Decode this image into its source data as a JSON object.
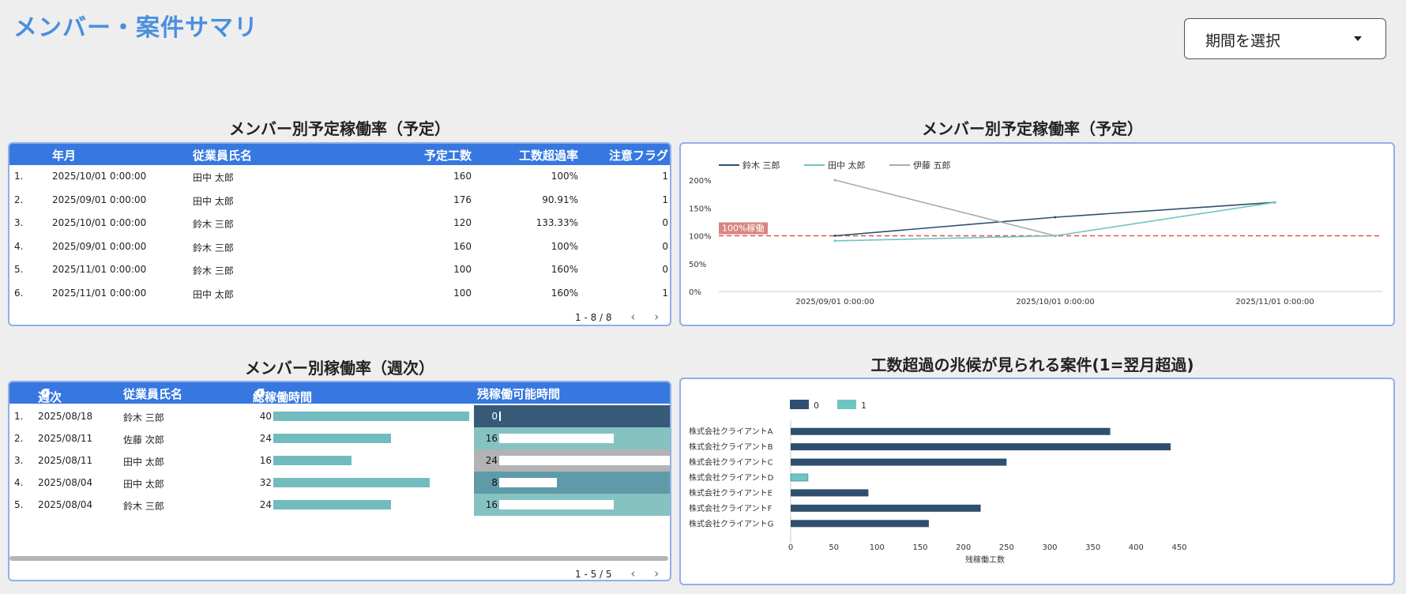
{
  "page_title": "メンバー・案件サマリ",
  "period_select": {
    "label": "期間を選択"
  },
  "table1": {
    "title": "メンバー別予定稼働率（予定）",
    "headers": [
      "年月",
      "従業員氏名",
      "予定工数",
      "工数超過率",
      "注意フラグ"
    ],
    "rows": [
      {
        "idx": "1.",
        "ym": "2025/10/01 0:00:00",
        "name": "田中 太郎",
        "hours": "160",
        "rate": "100%",
        "flag": "1"
      },
      {
        "idx": "2.",
        "ym": "2025/09/01 0:00:00",
        "name": "田中 太郎",
        "hours": "176",
        "rate": "90.91%",
        "flag": "1"
      },
      {
        "idx": "3.",
        "ym": "2025/10/01 0:00:00",
        "name": "鈴木 三郎",
        "hours": "120",
        "rate": "133.33%",
        "flag": "0"
      },
      {
        "idx": "4.",
        "ym": "2025/09/01 0:00:00",
        "name": "鈴木 三郎",
        "hours": "160",
        "rate": "100%",
        "flag": "0"
      },
      {
        "idx": "5.",
        "ym": "2025/11/01 0:00:00",
        "name": "鈴木 三郎",
        "hours": "100",
        "rate": "160%",
        "flag": "0"
      },
      {
        "idx": "6.",
        "ym": "2025/11/01 0:00:00",
        "name": "田中 太郎",
        "hours": "100",
        "rate": "160%",
        "flag": "1"
      }
    ],
    "pager": "1 - 8 / 8"
  },
  "table2": {
    "title": "メンバー別稼働率（週次）",
    "headers": [
      "週次",
      "従業員氏名",
      "総稼働時間",
      "残稼働可能時間"
    ],
    "info_icon": "info-icon",
    "rows": [
      {
        "idx": "1.",
        "week": "2025/08/18",
        "name": "鈴木 三郎",
        "total": 40,
        "remaining": 0,
        "remaining_color": "#375a78"
      },
      {
        "idx": "2.",
        "week": "2025/08/11",
        "name": "佐藤 次郎",
        "total": 24,
        "remaining": 16,
        "remaining_color": "#86c2c2"
      },
      {
        "idx": "3.",
        "week": "2025/08/11",
        "name": "田中 太郎",
        "total": 16,
        "remaining": 24,
        "remaining_color": "#b3b3b3"
      },
      {
        "idx": "4.",
        "week": "2025/08/04",
        "name": "田中 太郎",
        "total": 32,
        "remaining": 8,
        "remaining_color": "#5f9aa8"
      },
      {
        "idx": "5.",
        "week": "2025/08/04",
        "name": "鈴木 三郎",
        "total": 24,
        "remaining": 16,
        "remaining_color": "#86c2c2"
      }
    ],
    "total_max": 40,
    "remaining_max": 24,
    "pager": "1 - 5 / 5"
  },
  "chart_data": [
    {
      "type": "line",
      "title": "メンバー別予定稼働率（予定）",
      "x": [
        "2025/09/01 0:00:00",
        "2025/10/01 0:00:00",
        "2025/11/01 0:00:00"
      ],
      "series": [
        {
          "name": "鈴木 三郎",
          "values": [
            100,
            133.33,
            160
          ],
          "color": "#2f4f6f"
        },
        {
          "name": "田中 太郎",
          "values": [
            90.91,
            100,
            160
          ],
          "color": "#6ec5c0"
        },
        {
          "name": "伊藤 五郎",
          "values": [
            200,
            100,
            null
          ],
          "color": "#aaaaaa"
        }
      ],
      "yticks": [
        "0%",
        "50%",
        "100%",
        "150%",
        "200%"
      ],
      "ylim": [
        0,
        200
      ],
      "reference_line": {
        "value": 100,
        "label": "100%稼働",
        "color": "#d9534f"
      },
      "legend_position": "top-left"
    },
    {
      "type": "bar",
      "orientation": "horizontal",
      "title": "工数超過の兆候が見られる案件(1=翌月超過)",
      "categories": [
        "株式会社クライアントA",
        "株式会社クライアントB",
        "株式会社クライアントC",
        "株式会社クライアントD",
        "株式会社クライアントE",
        "株式会社クライアントF",
        "株式会社クライアントG"
      ],
      "series": [
        {
          "name": "0",
          "values": [
            370,
            440,
            250,
            0,
            90,
            220,
            160
          ],
          "color": "#2f4f6f"
        },
        {
          "name": "1",
          "values": [
            0,
            0,
            0,
            20,
            0,
            0,
            0
          ],
          "color": "#6ec5c0"
        }
      ],
      "xticks": [
        "0",
        "50",
        "100",
        "150",
        "200",
        "250",
        "300",
        "350",
        "400",
        "450"
      ],
      "xlim": [
        0,
        450
      ],
      "xlabel": "残稼働工数",
      "legend_position": "top-left"
    }
  ]
}
